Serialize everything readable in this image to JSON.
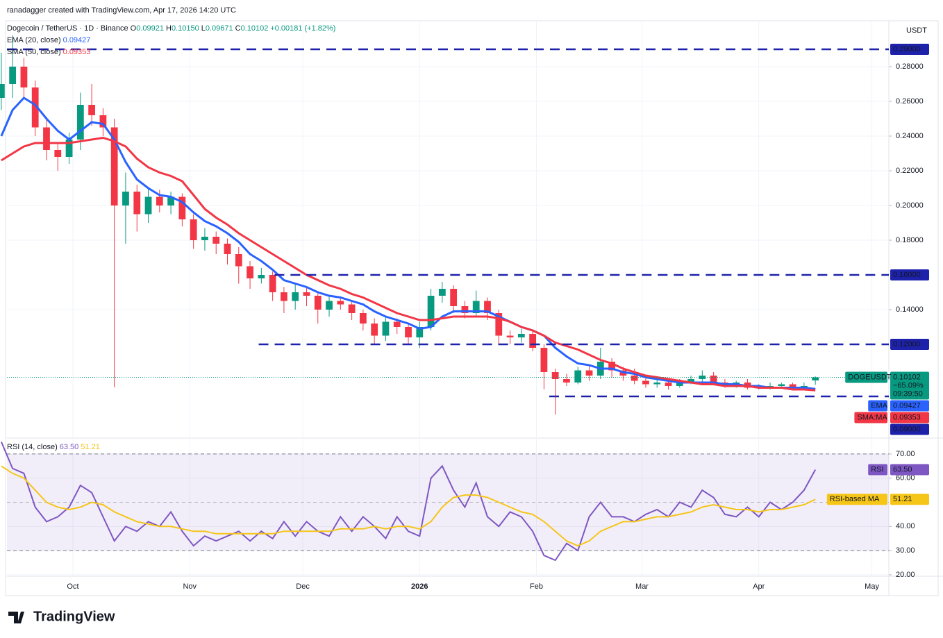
{
  "header": {
    "attribution": "ranadagger created with TradingView.com, Apr 17, 2026 14:20 UTC",
    "symbol": "Dogecoin / TetherUS · 1D · Binance",
    "ohlc": [
      {
        "key": "O",
        "value": 0.09921,
        "label": "0.09921"
      },
      {
        "key": "H",
        "value": 0.1015,
        "label": "0.10150"
      },
      {
        "key": "L",
        "value": 0.09671,
        "label": "0.09671"
      },
      {
        "key": "C",
        "value": 0.10102,
        "label": "0.10102"
      }
    ],
    "change": {
      "value": 0.00181,
      "label": "+0.00181"
    },
    "change_pct": {
      "value": 1.82,
      "label": "(+1.82%)"
    },
    "currency": "USDT"
  },
  "branding": "TradingView",
  "chart_data": [
    {
      "type": "candlestick",
      "x": [
        -19,
        -16,
        -13,
        -10,
        -7,
        -4,
        -1,
        2,
        5,
        8,
        11,
        14,
        17,
        20,
        23,
        26,
        29,
        32,
        35,
        38,
        41,
        44,
        47,
        50,
        53,
        56,
        59,
        62,
        65,
        68,
        71,
        74,
        77,
        80,
        83,
        86,
        89,
        92,
        95,
        98,
        101,
        104,
        107,
        110,
        113,
        116,
        119,
        122,
        125,
        128,
        131,
        134,
        137,
        140,
        143,
        146,
        149,
        152,
        155,
        158,
        161,
        164,
        167,
        170,
        173,
        176,
        179,
        182,
        185,
        188,
        191,
        194,
        197
      ],
      "open": [
        0.262,
        0.27,
        0.28,
        0.268,
        0.245,
        0.232,
        0.228,
        0.238,
        0.258,
        0.252,
        0.245,
        0.2,
        0.208,
        0.195,
        0.205,
        0.2,
        0.205,
        0.192,
        0.18,
        0.182,
        0.178,
        0.172,
        0.165,
        0.158,
        0.16,
        0.15,
        0.145,
        0.15,
        0.148,
        0.14,
        0.145,
        0.143,
        0.138,
        0.132,
        0.125,
        0.133,
        0.13,
        0.124,
        0.13,
        0.148,
        0.152,
        0.142,
        0.138,
        0.145,
        0.138,
        0.125,
        0.124,
        0.126,
        0.118,
        0.104,
        0.1,
        0.098,
        0.105,
        0.102,
        0.11,
        0.105,
        0.102,
        0.099,
        0.097,
        0.098,
        0.096,
        0.098,
        0.1,
        0.102,
        0.098,
        0.097,
        0.098,
        0.095,
        0.095,
        0.096,
        0.097,
        0.095,
        0.09921
      ],
      "high": [
        0.288,
        0.298,
        0.285,
        0.272,
        0.25,
        0.236,
        0.242,
        0.265,
        0.27,
        0.256,
        0.25,
        0.219,
        0.212,
        0.21,
        0.209,
        0.208,
        0.207,
        0.195,
        0.187,
        0.185,
        0.181,
        0.176,
        0.168,
        0.164,
        0.162,
        0.153,
        0.155,
        0.153,
        0.15,
        0.148,
        0.147,
        0.145,
        0.14,
        0.135,
        0.136,
        0.135,
        0.132,
        0.133,
        0.152,
        0.156,
        0.154,
        0.145,
        0.151,
        0.147,
        0.14,
        0.128,
        0.129,
        0.128,
        0.12,
        0.106,
        0.103,
        0.107,
        0.108,
        0.118,
        0.112,
        0.107,
        0.106,
        0.101,
        0.101,
        0.1,
        0.1,
        0.102,
        0.105,
        0.104,
        0.1,
        0.099,
        0.1,
        0.097,
        0.098,
        0.098,
        0.098,
        0.098,
        0.1015
      ],
      "low": [
        0.255,
        0.262,
        0.262,
        0.24,
        0.226,
        0.22,
        0.224,
        0.232,
        0.246,
        0.24,
        0.0952,
        0.178,
        0.185,
        0.19,
        0.196,
        0.195,
        0.188,
        0.175,
        0.174,
        0.172,
        0.166,
        0.155,
        0.152,
        0.155,
        0.145,
        0.138,
        0.14,
        0.142,
        0.132,
        0.136,
        0.14,
        0.134,
        0.128,
        0.12,
        0.122,
        0.126,
        0.12,
        0.118,
        0.128,
        0.144,
        0.138,
        0.135,
        0.136,
        0.134,
        0.12,
        0.12,
        0.121,
        0.116,
        0.094,
        0.0796,
        0.096,
        0.097,
        0.099,
        0.1,
        0.101,
        0.099,
        0.097,
        0.095,
        0.095,
        0.094,
        0.095,
        0.097,
        0.098,
        0.097,
        0.095,
        0.095,
        0.094,
        0.094,
        0.094,
        0.095,
        0.094,
        0.094,
        0.09671
      ],
      "close": [
        0.27,
        0.28,
        0.268,
        0.245,
        0.232,
        0.228,
        0.238,
        0.258,
        0.252,
        0.245,
        0.2,
        0.208,
        0.195,
        0.205,
        0.2,
        0.205,
        0.192,
        0.18,
        0.182,
        0.178,
        0.172,
        0.165,
        0.158,
        0.16,
        0.15,
        0.145,
        0.15,
        0.148,
        0.14,
        0.145,
        0.143,
        0.138,
        0.132,
        0.125,
        0.133,
        0.13,
        0.124,
        0.13,
        0.148,
        0.152,
        0.142,
        0.138,
        0.145,
        0.138,
        0.125,
        0.124,
        0.126,
        0.118,
        0.104,
        0.1,
        0.098,
        0.105,
        0.102,
        0.11,
        0.105,
        0.102,
        0.099,
        0.097,
        0.098,
        0.096,
        0.098,
        0.1,
        0.102,
        0.098,
        0.097,
        0.098,
        0.095,
        0.095,
        0.096,
        0.097,
        0.095,
        0.096,
        0.10102
      ],
      "up_color": "#089981",
      "down_color": "#f23645",
      "xlim": [
        -17.5,
        216.5
      ],
      "xticks": [
        {
          "value": 0,
          "label": "Oct"
        },
        {
          "value": 31,
          "label": "Nov"
        },
        {
          "value": 61,
          "label": "Dec"
        },
        {
          "value": 92,
          "label": "2026"
        },
        {
          "value": 123,
          "label": "Feb"
        },
        {
          "value": 151,
          "label": "Mar"
        },
        {
          "value": 182,
          "label": "Apr"
        },
        {
          "value": 212,
          "label": "May"
        }
      ],
      "ylim": [
        0.0664,
        0.3064
      ],
      "yticks": [
        {
          "value": 0.28,
          "label": "0.28000"
        },
        {
          "value": 0.26,
          "label": "0.26000"
        },
        {
          "value": 0.24,
          "label": "0.24000"
        },
        {
          "value": 0.22,
          "label": "0.22000"
        },
        {
          "value": 0.2,
          "label": "0.20000"
        },
        {
          "value": 0.18,
          "label": "0.18000"
        },
        {
          "value": 0.14,
          "label": "0.14000"
        }
      ],
      "grid": true,
      "series": [
        {
          "name": "EMA (20, close)",
          "color": "#2962ff",
          "values": [
            0.24,
            0.255,
            0.262,
            0.258,
            0.25,
            0.243,
            0.238,
            0.243,
            0.248,
            0.247,
            0.238,
            0.225,
            0.215,
            0.21,
            0.206,
            0.205,
            0.202,
            0.196,
            0.191,
            0.188,
            0.184,
            0.179,
            0.172,
            0.168,
            0.163,
            0.157,
            0.155,
            0.153,
            0.15,
            0.148,
            0.147,
            0.145,
            0.143,
            0.139,
            0.136,
            0.134,
            0.132,
            0.129,
            0.13,
            0.136,
            0.139,
            0.139,
            0.139,
            0.139,
            0.136,
            0.133,
            0.13,
            0.128,
            0.125,
            0.118,
            0.113,
            0.109,
            0.108,
            0.106,
            0.106,
            0.104,
            0.103,
            0.101,
            0.1,
            0.099,
            0.098,
            0.098,
            0.098,
            0.098,
            0.097,
            0.097,
            0.096,
            0.096,
            0.095,
            0.095,
            0.095,
            0.095,
            0.09427
          ]
        },
        {
          "name": "SMA (50, close)",
          "color": "#f23645",
          "values": [
            0.226,
            0.23,
            0.234,
            0.236,
            0.236,
            0.236,
            0.236,
            0.237,
            0.238,
            0.239,
            0.237,
            0.234,
            0.227,
            0.222,
            0.219,
            0.217,
            0.214,
            0.206,
            0.198,
            0.193,
            0.189,
            0.184,
            0.18,
            0.176,
            0.172,
            0.168,
            0.164,
            0.16,
            0.157,
            0.154,
            0.152,
            0.149,
            0.147,
            0.144,
            0.141,
            0.138,
            0.136,
            0.134,
            0.134,
            0.135,
            0.136,
            0.136,
            0.136,
            0.136,
            0.135,
            0.133,
            0.13,
            0.128,
            0.125,
            0.121,
            0.119,
            0.117,
            0.114,
            0.111,
            0.109,
            0.106,
            0.104,
            0.102,
            0.101,
            0.1,
            0.099,
            0.098,
            0.097,
            0.097,
            0.096,
            0.096,
            0.096,
            0.095,
            0.095,
            0.095,
            0.094,
            0.094,
            0.09353
          ]
        }
      ],
      "levels": [
        {
          "value": 0.29,
          "label": "0.29000",
          "from": -17.5
        },
        {
          "value": 0.16,
          "label": "0.16000",
          "from": 53.5
        },
        {
          "value": 0.12,
          "label": "0.12000",
          "from": 49.3
        },
        {
          "value": 0.09,
          "label": "0.09000",
          "from": 126.4
        }
      ],
      "level_color": "#1e22aa",
      "tags": [
        {
          "name": "DOGEUSDT",
          "value": 0.10102,
          "lines": [
            "−65.09%",
            "09:39:50"
          ],
          "color": "#089981"
        },
        {
          "name": "EMA",
          "value": 0.09427,
          "color": "#2962ff"
        },
        {
          "name": "SMA:MA",
          "value": 0.09353,
          "color": "#f23645"
        }
      ]
    },
    {
      "type": "line",
      "title": "RSI (14, close)",
      "x": [
        -19,
        -16,
        -13,
        -10,
        -7,
        -4,
        -1,
        2,
        5,
        8,
        11,
        14,
        17,
        20,
        23,
        26,
        29,
        32,
        35,
        38,
        41,
        44,
        47,
        50,
        53,
        56,
        59,
        62,
        65,
        68,
        71,
        74,
        77,
        80,
        83,
        86,
        89,
        92,
        95,
        98,
        101,
        104,
        107,
        110,
        113,
        116,
        119,
        122,
        125,
        128,
        131,
        134,
        137,
        140,
        143,
        146,
        149,
        152,
        155,
        158,
        161,
        164,
        167,
        170,
        173,
        176,
        179,
        182,
        185,
        188,
        191,
        194,
        197
      ],
      "xlim": [
        -17.5,
        216.5
      ],
      "ylim": [
        19.4,
        76.3
      ],
      "yticks": [
        {
          "value": 70,
          "label": "70.00"
        },
        {
          "value": 60,
          "label": "60.00"
        },
        {
          "value": 40,
          "label": "40.00"
        },
        {
          "value": 30,
          "label": "30.00"
        },
        {
          "value": 20,
          "label": "20.00"
        }
      ],
      "band": [
        30,
        70
      ],
      "midline": 50,
      "series": [
        {
          "name": "RSI",
          "color": "#7e57c2",
          "values": [
            75,
            64,
            62,
            48,
            42,
            44,
            48,
            57,
            54,
            44,
            34,
            40,
            38,
            42,
            40,
            46,
            38,
            32,
            36,
            34,
            36,
            38,
            34,
            38,
            35,
            42,
            36,
            42,
            38,
            36,
            44,
            38,
            44,
            40,
            35,
            44,
            38,
            36,
            60,
            65,
            55,
            48,
            58,
            44,
            40,
            46,
            44,
            38,
            28,
            26,
            33,
            30,
            44,
            50,
            44,
            44,
            42,
            45,
            47,
            44,
            50,
            48,
            55,
            52,
            45,
            44,
            48,
            44,
            50,
            47,
            50,
            55,
            63.5
          ],
          "value_labels": [
            null,
            null,
            null,
            null,
            null,
            null,
            null,
            null,
            null,
            null,
            null,
            null,
            null,
            null,
            null,
            null,
            null,
            null,
            null,
            null,
            null,
            null,
            null,
            null,
            null,
            null,
            null,
            null,
            null,
            null,
            null,
            null,
            null,
            null,
            null,
            null,
            null,
            null,
            null,
            null,
            null,
            null,
            null,
            null,
            null,
            null,
            null,
            null,
            null,
            null,
            null,
            null,
            null,
            null,
            null,
            null,
            null,
            null,
            null,
            null,
            null,
            null,
            null,
            null,
            null,
            null,
            null,
            null,
            null,
            null,
            null,
            null,
            "63.50"
          ]
        },
        {
          "name": "RSI-based MA",
          "color": "#f5c518",
          "values": [
            65,
            62,
            60,
            55,
            50,
            48,
            47,
            48,
            50,
            49,
            46,
            44,
            42,
            41,
            40,
            40,
            39,
            38,
            38,
            37,
            37,
            37,
            37,
            37,
            37,
            38,
            38,
            38,
            38,
            38,
            39,
            39,
            39,
            40,
            39,
            40,
            40,
            39,
            42,
            48,
            52,
            53,
            53,
            52,
            50,
            48,
            46,
            45,
            42,
            38,
            34,
            32,
            34,
            38,
            40,
            42,
            42,
            43,
            44,
            44,
            45,
            46,
            48,
            49,
            48,
            47,
            47,
            46,
            47,
            47,
            48,
            49,
            51.21
          ]
        }
      ]
    }
  ]
}
